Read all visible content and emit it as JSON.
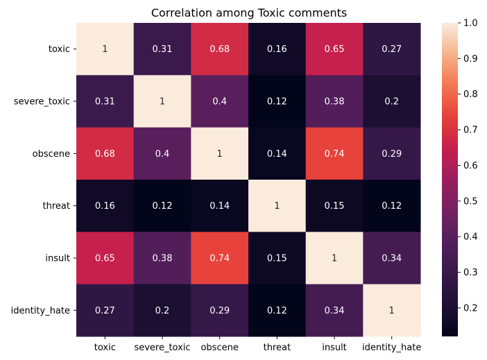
{
  "chart_data": {
    "type": "heatmap",
    "title": "Correlation among Toxic comments",
    "xlabel": "",
    "ylabel": "",
    "row_labels": [
      "toxic",
      "severe_toxic",
      "obscene",
      "threat",
      "insult",
      "identity_hate"
    ],
    "col_labels": [
      "toxic",
      "severe_toxic",
      "obscene",
      "threat",
      "insult",
      "identity_hate"
    ],
    "values": [
      [
        1,
        0.31,
        0.68,
        0.16,
        0.65,
        0.27
      ],
      [
        0.31,
        1,
        0.4,
        0.12,
        0.38,
        0.2
      ],
      [
        0.68,
        0.4,
        1,
        0.14,
        0.74,
        0.29
      ],
      [
        0.16,
        0.12,
        0.14,
        1,
        0.15,
        0.12
      ],
      [
        0.65,
        0.38,
        0.74,
        0.15,
        1,
        0.34
      ],
      [
        0.27,
        0.2,
        0.29,
        0.12,
        0.34,
        1
      ]
    ],
    "colorbar": {
      "min": 0.12,
      "max": 1.0,
      "ticks": [
        0.2,
        0.3,
        0.4,
        0.5,
        0.6,
        0.7,
        0.8,
        0.9,
        1.0
      ],
      "tick_labels": [
        "0.2",
        "0.3",
        "0.4",
        "0.5",
        "0.6",
        "0.7",
        "0.8",
        "0.9",
        "1.0"
      ],
      "colormap": "rocket"
    },
    "annotated": true,
    "grid": false
  }
}
